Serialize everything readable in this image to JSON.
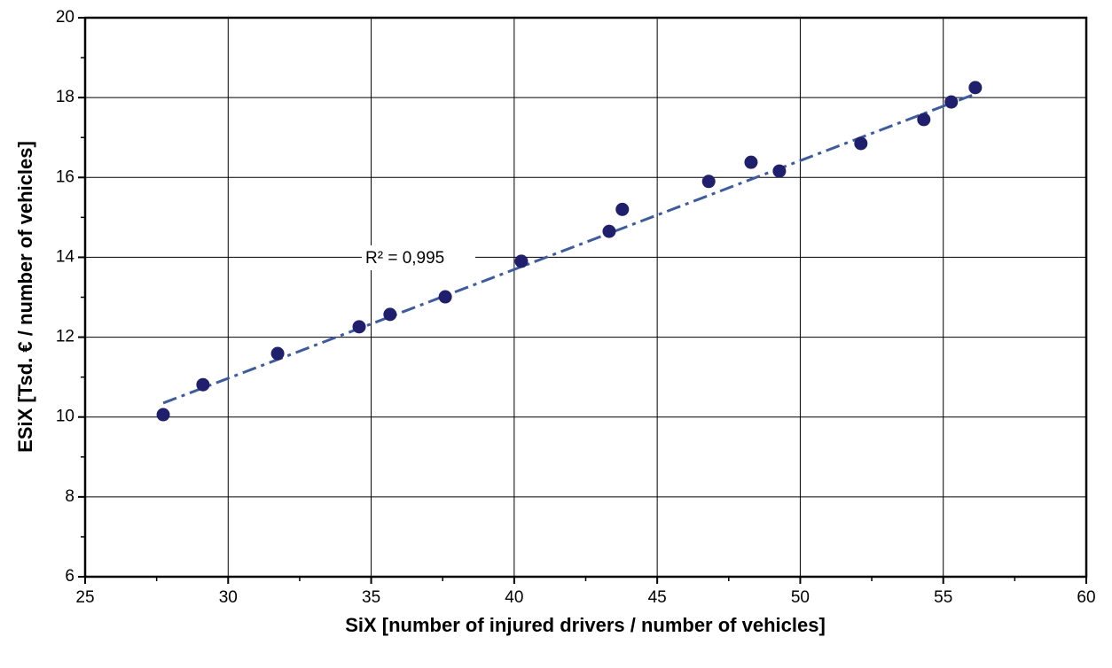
{
  "chart_data": {
    "type": "scatter",
    "xlabel": "SiX  [number of injured drivers / number of vehicles]",
    "ylabel": "ESiX  [Tsd. € / number of vehicles]",
    "annotation": "R² = 0,995",
    "series": [
      {
        "color": "#1f1f6e",
        "x": [
          27.73,
          29.12,
          31.73,
          34.58,
          35.66,
          37.59,
          40.25,
          43.32,
          43.78,
          46.8,
          48.28,
          49.27,
          52.12,
          54.32,
          55.28,
          56.12
        ],
        "values": [
          10.06,
          10.81,
          11.59,
          12.26,
          12.57,
          13.01,
          13.9,
          14.65,
          15.2,
          15.9,
          16.38,
          16.16,
          16.85,
          17.45,
          17.89,
          18.25
        ]
      }
    ],
    "trendline": {
      "color": "#3b5aa8",
      "x": [
        27.73,
        56.12
      ],
      "values": [
        10.35,
        18.09
      ]
    },
    "xlim": [
      25,
      60
    ],
    "xticks": [
      25,
      30,
      35,
      40,
      45,
      50,
      55,
      60
    ],
    "xminorticks": [
      27.5,
      32.5,
      37.5,
      42.5,
      47.5,
      52.5,
      57.5
    ],
    "ylim": [
      6,
      20
    ],
    "yticks": [
      6,
      8,
      10,
      12,
      14,
      16,
      18,
      20
    ],
    "yminorticks": [
      7,
      9,
      11,
      13,
      15,
      17,
      19
    ],
    "grid": true
  }
}
